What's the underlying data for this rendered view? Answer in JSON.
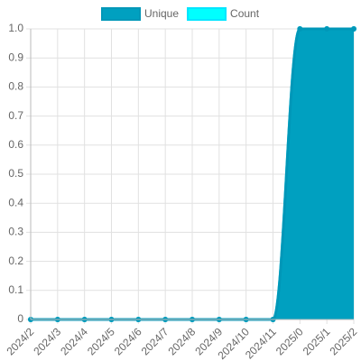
{
  "chart_data": {
    "type": "line",
    "categories": [
      "2024/2",
      "2024/3",
      "2024/4",
      "2024/5",
      "2024/6",
      "2024/7",
      "2024/8",
      "2024/9",
      "2024/10",
      "2024/11",
      "2025/0",
      "2025/1",
      "2025/2"
    ],
    "series": [
      {
        "name": "Unique",
        "color": "#0097b8",
        "fill": "#00a0c0",
        "values": [
          0,
          0,
          0,
          0,
          0,
          0,
          0,
          0,
          0,
          0,
          1,
          1,
          1
        ]
      },
      {
        "name": "Count",
        "color": "#00e5ff",
        "fill": "#00ffff",
        "values": [
          0,
          0,
          0,
          0,
          0,
          0,
          0,
          0,
          0,
          0,
          1,
          1,
          1
        ]
      }
    ],
    "ylim": [
      0,
      1
    ],
    "yticks": [
      0,
      0.1,
      0.2,
      0.3,
      0.4,
      0.5,
      0.6,
      0.7,
      0.8,
      0.9,
      {
        "value": 1,
        "label": "1.0"
      }
    ],
    "grid": true,
    "legend": "top"
  }
}
